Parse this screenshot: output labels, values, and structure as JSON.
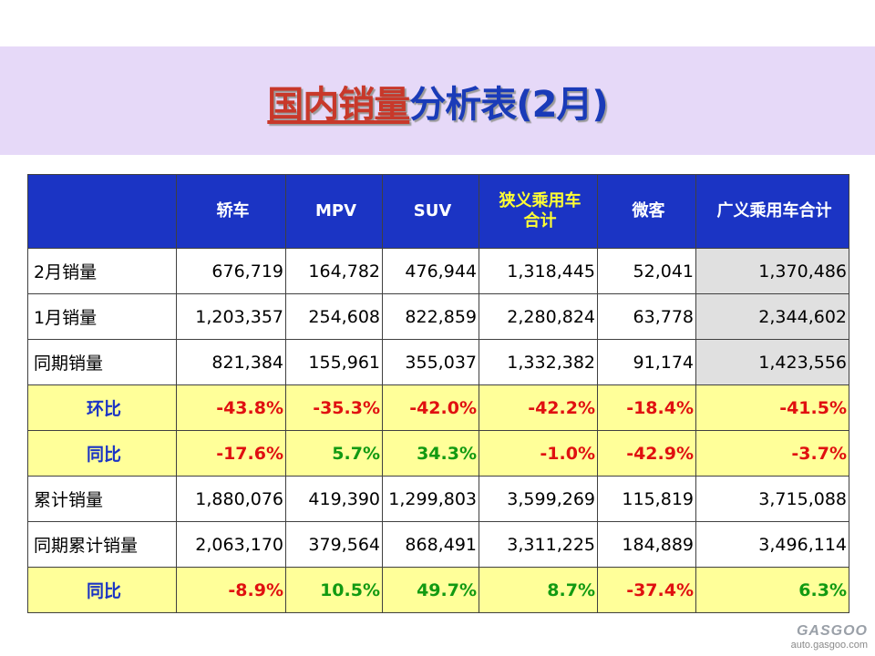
{
  "title": {
    "part1": "国内销量",
    "part2": "分析表(2月)"
  },
  "table": {
    "headers": [
      "",
      "轿车",
      "MPV",
      "SUV",
      "狭义乘用车合计",
      "微客",
      "广义乘用车合计"
    ],
    "rows": [
      {
        "label": "2月销量",
        "values": [
          "676,719",
          "164,782",
          "476,944",
          "1,318,445",
          "52,041",
          "1,370,486"
        ]
      },
      {
        "label": "1月销量",
        "values": [
          "1,203,357",
          "254,608",
          "822,859",
          "2,280,824",
          "63,778",
          "2,344,602"
        ]
      },
      {
        "label": "同期销量",
        "values": [
          "821,384",
          "155,961",
          "355,037",
          "1,332,382",
          "91,174",
          "1,423,556"
        ]
      },
      {
        "label": "环比",
        "values": [
          "-43.8%",
          "-35.3%",
          "-42.0%",
          "-42.2%",
          "-18.4%",
          "-41.5%"
        ]
      },
      {
        "label": "同比",
        "values": [
          "-17.6%",
          "5.7%",
          "34.3%",
          "-1.0%",
          "-42.9%",
          "-3.7%"
        ]
      },
      {
        "label": "累计销量",
        "values": [
          "1,880,076",
          "419,390",
          "1,299,803",
          "3,599,269",
          "115,819",
          "3,715,088"
        ]
      },
      {
        "label": "同期累计销量",
        "values": [
          "2,063,170",
          "379,564",
          "868,491",
          "3,311,225",
          "184,889",
          "3,496,114"
        ]
      },
      {
        "label": "同比",
        "values": [
          "-8.9%",
          "10.5%",
          "49.7%",
          "8.7%",
          "-37.4%",
          "6.3%"
        ]
      }
    ]
  },
  "colors": {
    "header_bg": "#1b34c4",
    "title_band": "#e6d9f8",
    "ratio_row_bg": "#ffff99",
    "negative": "#e01010",
    "positive": "#129a12",
    "highlight_header": "#ffff33"
  },
  "watermark": {
    "logo": "GASGOO",
    "url": "auto.gasgoo.com"
  }
}
